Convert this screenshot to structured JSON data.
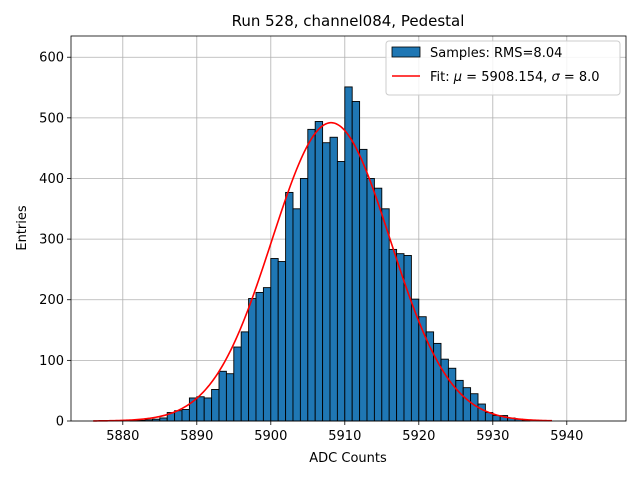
{
  "chart_data": {
    "type": "bar",
    "title": "Run 528, channel084, Pedestal",
    "xlabel": "ADC Counts",
    "ylabel": "Entries",
    "xlim": [
      5873,
      5948
    ],
    "ylim": [
      0,
      635
    ],
    "xticks": [
      5880,
      5890,
      5900,
      5910,
      5920,
      5930,
      5940
    ],
    "yticks": [
      0,
      100,
      200,
      300,
      400,
      500,
      600
    ],
    "grid": true,
    "legend_position": "top-right",
    "histogram": {
      "name": "Samples: RMS=8.04",
      "color": "#1f77b4",
      "edgecolor": "#000000",
      "bin_width": 1,
      "bin_starts": [
        5876,
        5877,
        5878,
        5879,
        5880,
        5881,
        5882,
        5883,
        5884,
        5885,
        5886,
        5887,
        5888,
        5889,
        5890,
        5891,
        5892,
        5893,
        5894,
        5895,
        5896,
        5897,
        5898,
        5899,
        5900,
        5901,
        5902,
        5903,
        5904,
        5905,
        5906,
        5907,
        5908,
        5909,
        5910,
        5911,
        5912,
        5913,
        5914,
        5915,
        5916,
        5917,
        5918,
        5919,
        5920,
        5921,
        5922,
        5923,
        5924,
        5925,
        5926,
        5927,
        5928,
        5929,
        5930,
        5931,
        5932,
        5933,
        5934,
        5935,
        5936,
        5937
      ],
      "counts": [
        0,
        0,
        0,
        0,
        0,
        1,
        1,
        2,
        3,
        5,
        14,
        17,
        19,
        38,
        40,
        38,
        52,
        82,
        78,
        122,
        147,
        202,
        212,
        220,
        268,
        263,
        377,
        350,
        400,
        481,
        494,
        459,
        468,
        428,
        551,
        527,
        448,
        400,
        384,
        350,
        283,
        276,
        273,
        201,
        172,
        147,
        128,
        102,
        87,
        67,
        55,
        45,
        28,
        14,
        9,
        9,
        5,
        3,
        1,
        0,
        0,
        0
      ]
    },
    "fit": {
      "name": "Fit: $\\mu$ = 5908.154, $\\sigma$ = 8.0",
      "legend_prefix": "Fit: ",
      "legend_mu_symbol": "μ",
      "legend_mu_value": " = 5908.154, ",
      "legend_sigma_symbol": "σ",
      "legend_sigma_value": " = 8.0",
      "color": "#ff0000",
      "mu": 5908.154,
      "sigma": 8.0,
      "amplitude": 492,
      "x_range": [
        5876,
        5938
      ]
    }
  }
}
